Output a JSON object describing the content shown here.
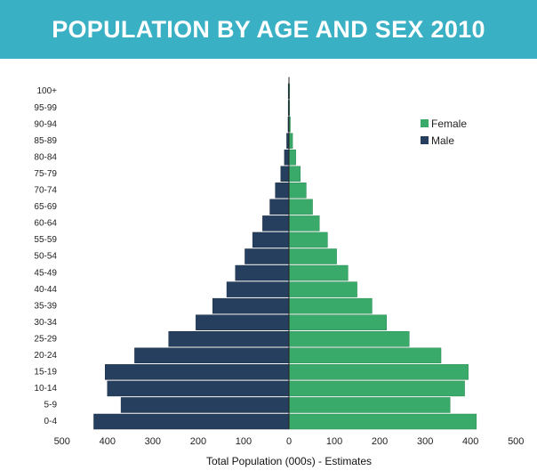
{
  "header": {
    "title": "POPULATION BY AGE AND SEX 2010",
    "background_color": "#3ab0c4"
  },
  "chart_data": {
    "type": "bar",
    "orientation": "horizontal",
    "subtype": "population-pyramid",
    "title": "POPULATION BY AGE AND SEX 2010",
    "xlabel": "Total Population (000s) - Estimates",
    "ylabel": "",
    "xlim": [
      -500,
      500
    ],
    "x_ticks": [
      "500",
      "400",
      "300",
      "200",
      "100",
      "0",
      "100",
      "200",
      "300",
      "400",
      "500"
    ],
    "categories": [
      "0-4",
      "5-9",
      "10-14",
      "15-19",
      "20-24",
      "25-29",
      "30-34",
      "35-39",
      "40-44",
      "45-49",
      "50-54",
      "55-59",
      "60-64",
      "65-69",
      "70-74",
      "75-79",
      "80-84",
      "85-89",
      "90-94",
      "95-99",
      "100+"
    ],
    "series": [
      {
        "name": "Male",
        "color": "#263f5e",
        "values": [
          430,
          370,
          400,
          405,
          340,
          265,
          205,
          168,
          137,
          118,
          97,
          80,
          58,
          42,
          30,
          18,
          10,
          5,
          2,
          1,
          0.5
        ]
      },
      {
        "name": "Female",
        "color": "#3aaa6a",
        "values": [
          413,
          355,
          387,
          395,
          335,
          265,
          215,
          183,
          150,
          130,
          105,
          85,
          67,
          52,
          38,
          25,
          15,
          8,
          3,
          1,
          0.5
        ]
      }
    ],
    "legend": {
      "placement": "top-right",
      "entries": [
        "Female",
        "Male"
      ]
    },
    "grid": false
  }
}
